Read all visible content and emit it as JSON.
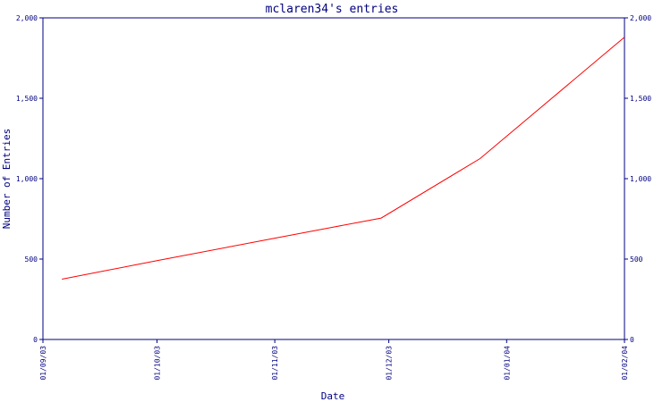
{
  "chart_data": {
    "type": "line",
    "title": "mclaren34's entries",
    "xlabel": "Date",
    "ylabel": "Number of Entries",
    "x_ticks": [
      "01/09/03",
      "01/10/03",
      "01/11/03",
      "01/12/03",
      "01/01/04",
      "01/02/04"
    ],
    "y_ticks": [
      "0",
      "500",
      "1,000",
      "1,500",
      "2,000"
    ],
    "y_tick_values": [
      0,
      500,
      1000,
      1500,
      2000
    ],
    "ylim": [
      0,
      2000
    ],
    "xlim": [
      "2003-09-01",
      "2004-02-01"
    ],
    "grid": false,
    "series": [
      {
        "color": "#ff0000",
        "x": [
          "2003-09-06",
          "2003-10-01",
          "2003-11-01",
          "2003-11-29",
          "2003-12-25",
          "2004-02-01"
        ],
        "y": [
          375,
          490,
          630,
          755,
          1125,
          1880
        ]
      }
    ],
    "colors": {
      "axis": "#000080",
      "line": "#ff0000"
    }
  }
}
